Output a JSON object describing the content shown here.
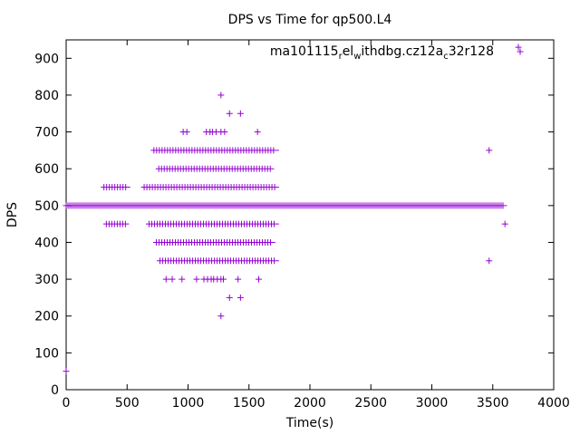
{
  "chart_data": {
    "type": "scatter",
    "title": "DPS vs Time for qp500.L4",
    "xlabel": "Time(s)",
    "ylabel": "DPS",
    "xlim": [
      0,
      4000
    ],
    "ylim": [
      0,
      950
    ],
    "xticks": [
      0,
      500,
      1000,
      1500,
      2000,
      2500,
      3000,
      3500,
      4000
    ],
    "yticks": [
      0,
      100,
      200,
      300,
      400,
      500,
      600,
      700,
      800,
      900
    ],
    "grid": false,
    "legend_position": "top-right",
    "marker": "plus",
    "color": "#9400d3",
    "legend": {
      "parts": [
        "ma101115",
        "r",
        "el",
        "w",
        "ithdbg.cz12a",
        "c",
        "32r128"
      ]
    },
    "series": [
      {
        "level_ranges": [
          {
            "y": 500,
            "x_from": 0,
            "x_to": 3590
          },
          {
            "y": 550,
            "x_from": 310,
            "x_to": 500
          },
          {
            "y": 550,
            "x_from": 640,
            "x_to": 1720
          },
          {
            "y": 450,
            "x_from": 330,
            "x_to": 490
          },
          {
            "y": 450,
            "x_from": 680,
            "x_to": 1720
          },
          {
            "y": 600,
            "x_from": 760,
            "x_to": 1680
          },
          {
            "y": 400,
            "x_from": 740,
            "x_to": 1690
          },
          {
            "y": 650,
            "x_from": 720,
            "x_to": 1720
          },
          {
            "y": 350,
            "x_from": 770,
            "x_to": 1720
          }
        ],
        "points": [
          [
            0,
            50
          ],
          [
            820,
            300
          ],
          [
            870,
            300
          ],
          [
            950,
            300
          ],
          [
            1070,
            300
          ],
          [
            1130,
            300
          ],
          [
            1160,
            300
          ],
          [
            1190,
            300
          ],
          [
            1210,
            300
          ],
          [
            1240,
            300
          ],
          [
            1270,
            300
          ],
          [
            1290,
            300
          ],
          [
            1410,
            300
          ],
          [
            1580,
            300
          ],
          [
            1340,
            250
          ],
          [
            1430,
            250
          ],
          [
            1270,
            200
          ],
          [
            960,
            700
          ],
          [
            990,
            700
          ],
          [
            1150,
            700
          ],
          [
            1180,
            700
          ],
          [
            1200,
            700
          ],
          [
            1230,
            700
          ],
          [
            1270,
            700
          ],
          [
            1300,
            700
          ],
          [
            1570,
            700
          ],
          [
            1340,
            750
          ],
          [
            1430,
            750
          ],
          [
            1270,
            800
          ],
          [
            3710,
            930
          ],
          [
            3470,
            650
          ],
          [
            3470,
            350
          ],
          [
            3600,
            450
          ]
        ]
      }
    ]
  }
}
